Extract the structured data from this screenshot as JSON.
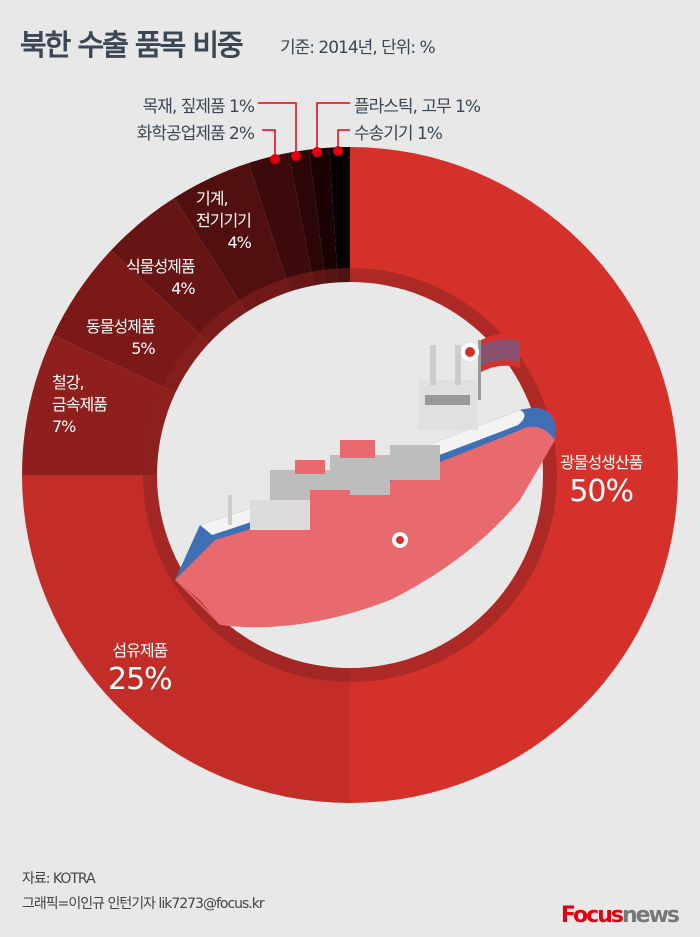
{
  "header": {
    "title": "북한 수출 품목 비중",
    "subtitle": "기준: 2014년, 단위: %"
  },
  "chart_data": {
    "type": "pie",
    "donut": true,
    "title": "북한 수출 품목 비중",
    "subtitle": "기준: 2014년, 단위: %",
    "categories": [
      "광물성생산품",
      "섬유제품",
      "철강, 금속제품",
      "동물성제품",
      "식물성제품",
      "기계, 전기기기",
      "화학공업제품",
      "목재, 짚제품",
      "플라스틱, 고무",
      "수송기기"
    ],
    "values": [
      50,
      25,
      7,
      5,
      4,
      4,
      2,
      1,
      1,
      1
    ],
    "labels": [
      "50%",
      "25%",
      "7%",
      "5%",
      "4%",
      "4%",
      "2%",
      "1%",
      "1%",
      "1%"
    ],
    "colors": [
      "#d5312b",
      "#c22d28",
      "#8e1f1c",
      "#7b1918",
      "#661414",
      "#520f0f",
      "#3c0a0a",
      "#2c0606",
      "#1b0303",
      "#050000"
    ],
    "order": "clockwise from top"
  },
  "labels": {
    "mineral": {
      "name": "광물성생산품",
      "pct": "50%"
    },
    "textile": {
      "name": "섬유제품",
      "pct": "25%"
    },
    "steel": {
      "name1": "철강,",
      "name2": "금속제품",
      "pct": "7%"
    },
    "animal": {
      "name": "동물성제품",
      "pct": "5%"
    },
    "plant": {
      "name": "식물성제품",
      "pct": "4%"
    },
    "machine": {
      "name1": "기계,",
      "name2": "전기기기",
      "pct": "4%"
    },
    "wood": "목재, 짚제품 1%",
    "chem": "화학공업제품 2%",
    "plastic": "플라스틱, 고무 1%",
    "transport": "수송기기 1%"
  },
  "footer": {
    "source": "자료: KOTRA",
    "credit": "그래픽=이인규 인턴기자 lik7273@focus.kr",
    "logo_red": "Focus",
    "logo_gray": "news"
  },
  "accent": "#e3000f"
}
